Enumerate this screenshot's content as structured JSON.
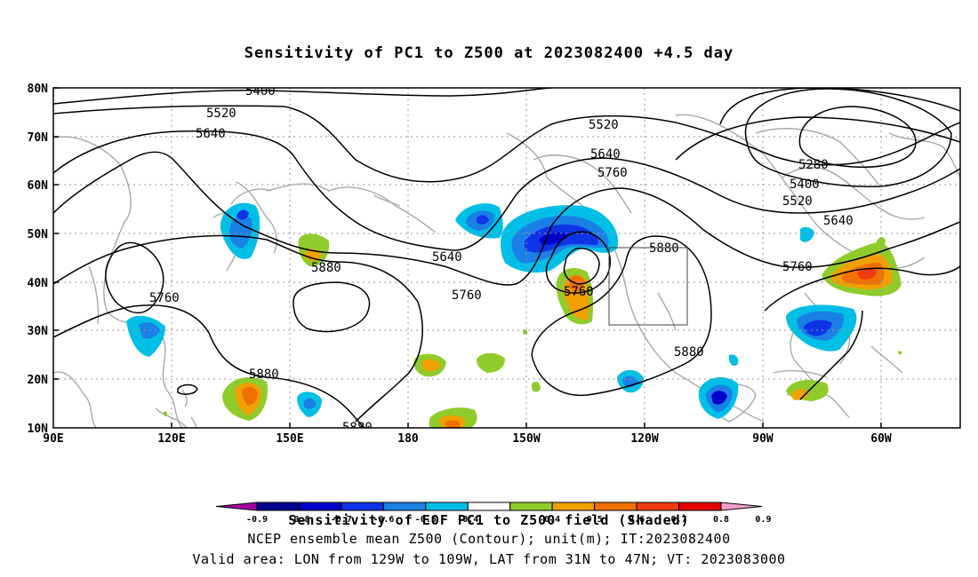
{
  "title": "Sensitivity of PC1 to Z500 at 2023082400 +4.5 day",
  "lat_labels": [
    "80N",
    "70N",
    "60N",
    "50N",
    "40N",
    "30N",
    "20N",
    "10N"
  ],
  "lon_labels": [
    "90E",
    "120E",
    "150E",
    "180",
    "150W",
    "120W",
    "90W",
    "60W"
  ],
  "contour_labels": [
    "5400",
    "5520",
    "5640",
    "5760",
    "5880",
    "5520",
    "5640",
    "5760",
    "5880",
    "5280",
    "5400",
    "5520",
    "5640",
    "5760",
    "5640",
    "5760",
    "5760",
    "5880",
    "5880",
    "5880",
    "5880"
  ],
  "colorbar": {
    "colors": [
      "#a0009f",
      "#00008f",
      "#0000cc",
      "#0f33e6",
      "#1a80e6",
      "#00bfe6",
      "#ffffff",
      "#8fcc2b",
      "#f0a000",
      "#f07000",
      "#f03a10",
      "#e60000",
      "#f0a0d0"
    ],
    "tick_labels": [
      "-0.9",
      "-0.8",
      "-0.7",
      "-0.6",
      "-0.5",
      "-0.4",
      "0.4",
      "0.5",
      "0.6",
      "0.7",
      "0.8",
      "0.9"
    ]
  },
  "caption_line1": "Sensitivity of EOF PC1 to Z500 field (Shaded)",
  "caption_line2": "NCEP ensemble mean Z500 (Contour); unit(m); IT:2023082400",
  "caption_line3": "Valid area: LON from 129W to 109W, LAT from 31N to 47N; VT: 2023083000",
  "valid_area": {
    "lon_from": "129W",
    "lon_to": "109W",
    "lat_from": "31N",
    "lat_to": "47N"
  }
}
